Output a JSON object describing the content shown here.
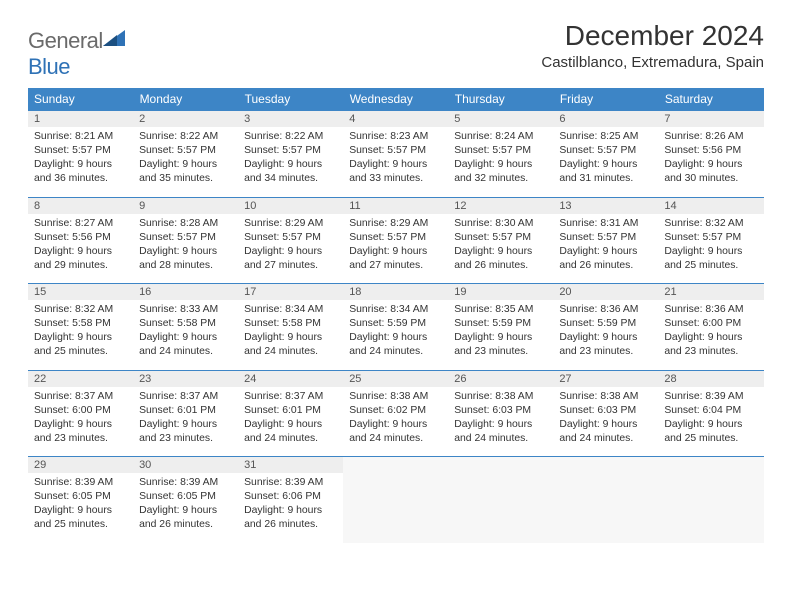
{
  "logo": {
    "word1": "General",
    "word2": "Blue"
  },
  "title": "December 2024",
  "subtitle": "Castilblanco, Extremadura, Spain",
  "colors": {
    "header_bg": "#3d85c6",
    "header_fg": "#ffffff",
    "daynum_bg": "#eeeeee",
    "rule": "#3d85c6",
    "logo_gray": "#6a6a6a",
    "logo_blue": "#2f72b6"
  },
  "weekdays": [
    "Sunday",
    "Monday",
    "Tuesday",
    "Wednesday",
    "Thursday",
    "Friday",
    "Saturday"
  ],
  "weeks": [
    [
      {
        "n": "1",
        "sunrise": "Sunrise: 8:21 AM",
        "sunset": "Sunset: 5:57 PM",
        "d1": "Daylight: 9 hours",
        "d2": "and 36 minutes."
      },
      {
        "n": "2",
        "sunrise": "Sunrise: 8:22 AM",
        "sunset": "Sunset: 5:57 PM",
        "d1": "Daylight: 9 hours",
        "d2": "and 35 minutes."
      },
      {
        "n": "3",
        "sunrise": "Sunrise: 8:22 AM",
        "sunset": "Sunset: 5:57 PM",
        "d1": "Daylight: 9 hours",
        "d2": "and 34 minutes."
      },
      {
        "n": "4",
        "sunrise": "Sunrise: 8:23 AM",
        "sunset": "Sunset: 5:57 PM",
        "d1": "Daylight: 9 hours",
        "d2": "and 33 minutes."
      },
      {
        "n": "5",
        "sunrise": "Sunrise: 8:24 AM",
        "sunset": "Sunset: 5:57 PM",
        "d1": "Daylight: 9 hours",
        "d2": "and 32 minutes."
      },
      {
        "n": "6",
        "sunrise": "Sunrise: 8:25 AM",
        "sunset": "Sunset: 5:57 PM",
        "d1": "Daylight: 9 hours",
        "d2": "and 31 minutes."
      },
      {
        "n": "7",
        "sunrise": "Sunrise: 8:26 AM",
        "sunset": "Sunset: 5:56 PM",
        "d1": "Daylight: 9 hours",
        "d2": "and 30 minutes."
      }
    ],
    [
      {
        "n": "8",
        "sunrise": "Sunrise: 8:27 AM",
        "sunset": "Sunset: 5:56 PM",
        "d1": "Daylight: 9 hours",
        "d2": "and 29 minutes."
      },
      {
        "n": "9",
        "sunrise": "Sunrise: 8:28 AM",
        "sunset": "Sunset: 5:57 PM",
        "d1": "Daylight: 9 hours",
        "d2": "and 28 minutes."
      },
      {
        "n": "10",
        "sunrise": "Sunrise: 8:29 AM",
        "sunset": "Sunset: 5:57 PM",
        "d1": "Daylight: 9 hours",
        "d2": "and 27 minutes."
      },
      {
        "n": "11",
        "sunrise": "Sunrise: 8:29 AM",
        "sunset": "Sunset: 5:57 PM",
        "d1": "Daylight: 9 hours",
        "d2": "and 27 minutes."
      },
      {
        "n": "12",
        "sunrise": "Sunrise: 8:30 AM",
        "sunset": "Sunset: 5:57 PM",
        "d1": "Daylight: 9 hours",
        "d2": "and 26 minutes."
      },
      {
        "n": "13",
        "sunrise": "Sunrise: 8:31 AM",
        "sunset": "Sunset: 5:57 PM",
        "d1": "Daylight: 9 hours",
        "d2": "and 26 minutes."
      },
      {
        "n": "14",
        "sunrise": "Sunrise: 8:32 AM",
        "sunset": "Sunset: 5:57 PM",
        "d1": "Daylight: 9 hours",
        "d2": "and 25 minutes."
      }
    ],
    [
      {
        "n": "15",
        "sunrise": "Sunrise: 8:32 AM",
        "sunset": "Sunset: 5:58 PM",
        "d1": "Daylight: 9 hours",
        "d2": "and 25 minutes."
      },
      {
        "n": "16",
        "sunrise": "Sunrise: 8:33 AM",
        "sunset": "Sunset: 5:58 PM",
        "d1": "Daylight: 9 hours",
        "d2": "and 24 minutes."
      },
      {
        "n": "17",
        "sunrise": "Sunrise: 8:34 AM",
        "sunset": "Sunset: 5:58 PM",
        "d1": "Daylight: 9 hours",
        "d2": "and 24 minutes."
      },
      {
        "n": "18",
        "sunrise": "Sunrise: 8:34 AM",
        "sunset": "Sunset: 5:59 PM",
        "d1": "Daylight: 9 hours",
        "d2": "and 24 minutes."
      },
      {
        "n": "19",
        "sunrise": "Sunrise: 8:35 AM",
        "sunset": "Sunset: 5:59 PM",
        "d1": "Daylight: 9 hours",
        "d2": "and 23 minutes."
      },
      {
        "n": "20",
        "sunrise": "Sunrise: 8:36 AM",
        "sunset": "Sunset: 5:59 PM",
        "d1": "Daylight: 9 hours",
        "d2": "and 23 minutes."
      },
      {
        "n": "21",
        "sunrise": "Sunrise: 8:36 AM",
        "sunset": "Sunset: 6:00 PM",
        "d1": "Daylight: 9 hours",
        "d2": "and 23 minutes."
      }
    ],
    [
      {
        "n": "22",
        "sunrise": "Sunrise: 8:37 AM",
        "sunset": "Sunset: 6:00 PM",
        "d1": "Daylight: 9 hours",
        "d2": "and 23 minutes."
      },
      {
        "n": "23",
        "sunrise": "Sunrise: 8:37 AM",
        "sunset": "Sunset: 6:01 PM",
        "d1": "Daylight: 9 hours",
        "d2": "and 23 minutes."
      },
      {
        "n": "24",
        "sunrise": "Sunrise: 8:37 AM",
        "sunset": "Sunset: 6:01 PM",
        "d1": "Daylight: 9 hours",
        "d2": "and 24 minutes."
      },
      {
        "n": "25",
        "sunrise": "Sunrise: 8:38 AM",
        "sunset": "Sunset: 6:02 PM",
        "d1": "Daylight: 9 hours",
        "d2": "and 24 minutes."
      },
      {
        "n": "26",
        "sunrise": "Sunrise: 8:38 AM",
        "sunset": "Sunset: 6:03 PM",
        "d1": "Daylight: 9 hours",
        "d2": "and 24 minutes."
      },
      {
        "n": "27",
        "sunrise": "Sunrise: 8:38 AM",
        "sunset": "Sunset: 6:03 PM",
        "d1": "Daylight: 9 hours",
        "d2": "and 24 minutes."
      },
      {
        "n": "28",
        "sunrise": "Sunrise: 8:39 AM",
        "sunset": "Sunset: 6:04 PM",
        "d1": "Daylight: 9 hours",
        "d2": "and 25 minutes."
      }
    ],
    [
      {
        "n": "29",
        "sunrise": "Sunrise: 8:39 AM",
        "sunset": "Sunset: 6:05 PM",
        "d1": "Daylight: 9 hours",
        "d2": "and 25 minutes."
      },
      {
        "n": "30",
        "sunrise": "Sunrise: 8:39 AM",
        "sunset": "Sunset: 6:05 PM",
        "d1": "Daylight: 9 hours",
        "d2": "and 26 minutes."
      },
      {
        "n": "31",
        "sunrise": "Sunrise: 8:39 AM",
        "sunset": "Sunset: 6:06 PM",
        "d1": "Daylight: 9 hours",
        "d2": "and 26 minutes."
      },
      null,
      null,
      null,
      null
    ]
  ]
}
